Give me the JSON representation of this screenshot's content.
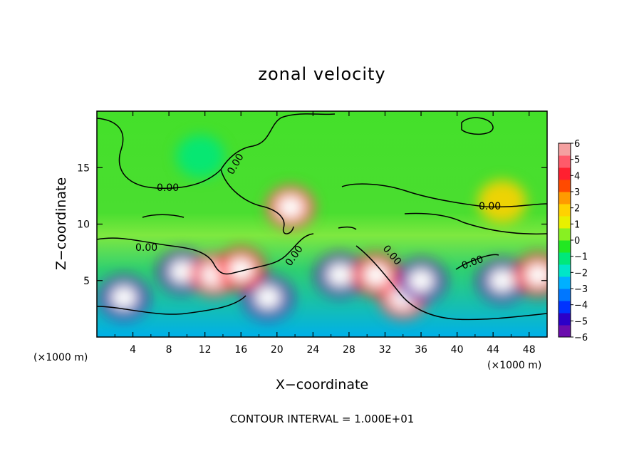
{
  "chart_data": {
    "type": "heatmap",
    "title": "zonal velocity",
    "xlabel": "X−coordinate",
    "ylabel": "Z−coordinate",
    "x_unit": "(×1000 m)",
    "y_unit": "(×1000 m)",
    "xlim": [
      0,
      50
    ],
    "ylim": [
      0,
      20
    ],
    "x_ticks": [
      "4",
      "8",
      "12",
      "16",
      "20",
      "24",
      "28",
      "32",
      "36",
      "40",
      "44",
      "48"
    ],
    "y_ticks": [
      "5",
      "10",
      "15"
    ],
    "colorbar": {
      "ticks": [
        "6",
        "5",
        "4",
        "3",
        "2",
        "1",
        "0",
        "−1",
        "−2",
        "−3",
        "−4",
        "−5",
        "−6"
      ],
      "range": [
        -6,
        6
      ],
      "colors": [
        "#6a0dad",
        "#2b00c8",
        "#0033ff",
        "#0077ff",
        "#00b0ff",
        "#00e6c8",
        "#00e87a",
        "#22e822",
        "#88f022",
        "#e8f000",
        "#ffd200",
        "#ff9a00",
        "#ff4a00",
        "#ff2030",
        "#ff5a6a",
        "#f4a0a0"
      ]
    },
    "contour_labels": [
      "0.00",
      "0.00",
      "0.00",
      "0.00",
      "0.00",
      "0.00",
      "0.00"
    ],
    "contour_interval_text": "CONTOUR INTERVAL = 1.000E+01",
    "features": [
      {
        "x": 3,
        "z": 3.5,
        "u": -6
      },
      {
        "x": 9.5,
        "z": 5.8,
        "u": -6
      },
      {
        "x": 13,
        "z": 5.5,
        "u": 5
      },
      {
        "x": 19,
        "z": 3.5,
        "u": -6
      },
      {
        "x": 16,
        "z": 6,
        "u": 4
      },
      {
        "x": 21.5,
        "z": 11.5,
        "u": 5
      },
      {
        "x": 27,
        "z": 5.5,
        "u": -6
      },
      {
        "x": 31,
        "z": 5.5,
        "u": 4
      },
      {
        "x": 34,
        "z": 3.5,
        "u": 5
      },
      {
        "x": 36,
        "z": 5,
        "u": -6
      },
      {
        "x": 45,
        "z": 5,
        "u": -6
      },
      {
        "x": 49,
        "z": 5.5,
        "u": 4
      },
      {
        "x": 11.5,
        "z": 16,
        "u": -1.5
      },
      {
        "x": 45,
        "z": 12,
        "u": 1.5
      }
    ],
    "grid": false
  }
}
